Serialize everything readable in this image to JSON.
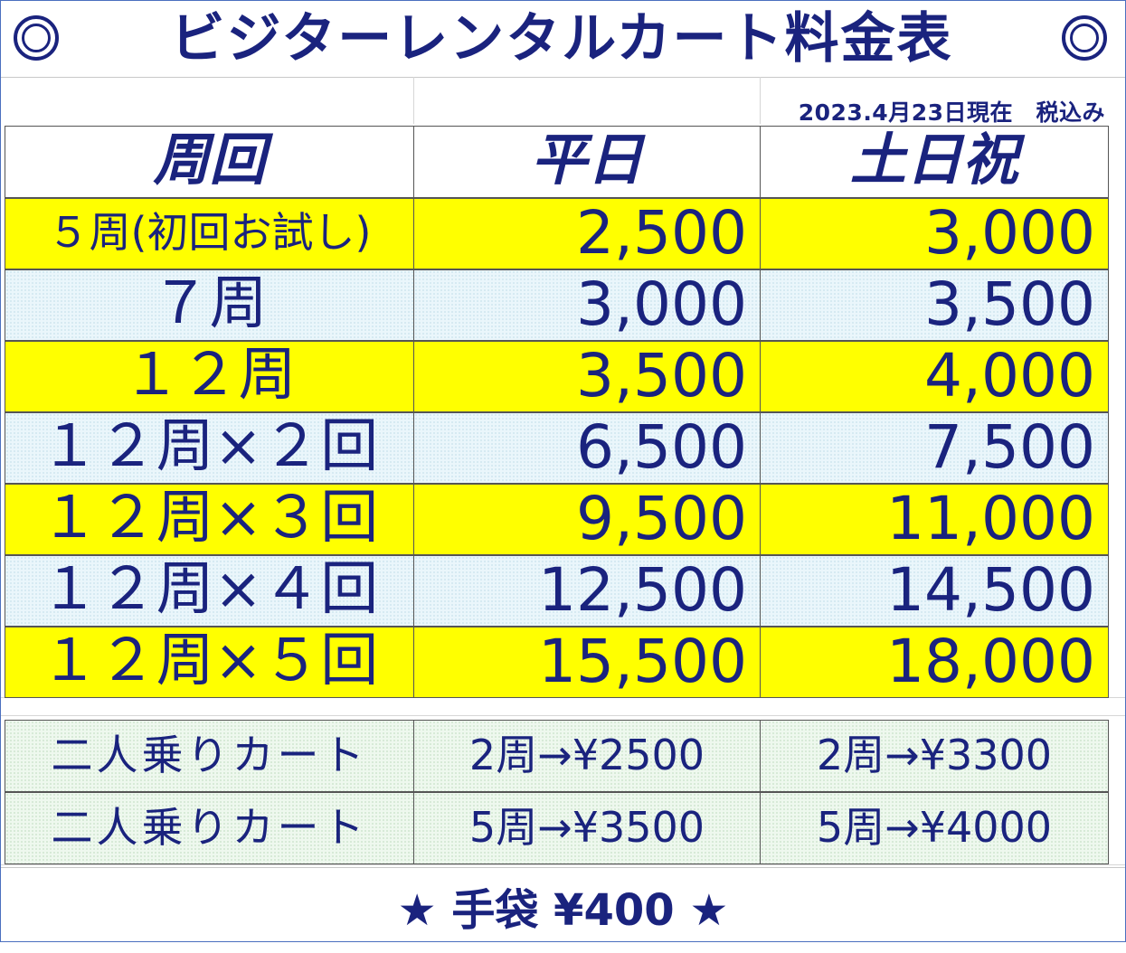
{
  "title": "ビジターレンタルカート料金表",
  "as_of": "2023.4月23日現在　税込み",
  "headers": {
    "laps": "周回",
    "weekday": "平日",
    "weekend": "土日祝"
  },
  "rows": [
    {
      "laps": "５周(初回お試し)",
      "weekday": "2,500",
      "weekend": "3,000",
      "color": "#ffff00"
    },
    {
      "laps": "７周",
      "weekday": "3,000",
      "weekend": "3,500",
      "color": "#eaf6fb"
    },
    {
      "laps": "１２周",
      "weekday": "3,500",
      "weekend": "4,000",
      "color": "#ffff00"
    },
    {
      "laps": "１２周×２回",
      "weekday": "6,500",
      "weekend": "7,500",
      "color": "#eaf6fb"
    },
    {
      "laps": "１２周×３回",
      "weekday": "9,500",
      "weekend": "11,000",
      "color": "#ffff00"
    },
    {
      "laps": "１２周×４回",
      "weekday": "12,500",
      "weekend": "14,500",
      "color": "#eaf6fb"
    },
    {
      "laps": "１２周×５回",
      "weekday": "15,500",
      "weekend": "18,000",
      "color": "#ffff00"
    }
  ],
  "tandem": [
    {
      "label": "二人乗りカート",
      "weekday": "2周→¥2500",
      "weekend": "2周→¥3300"
    },
    {
      "label": "二人乗りカート",
      "weekday": "5周→¥3500",
      "weekend": "5周→¥4000"
    }
  ],
  "footer": "★ 手袋 ¥400 ★",
  "colors": {
    "text": "#1a237e",
    "highlight": "#ffff00",
    "light_blue": "#eaf6fb",
    "light_green": "#eef8ee"
  }
}
